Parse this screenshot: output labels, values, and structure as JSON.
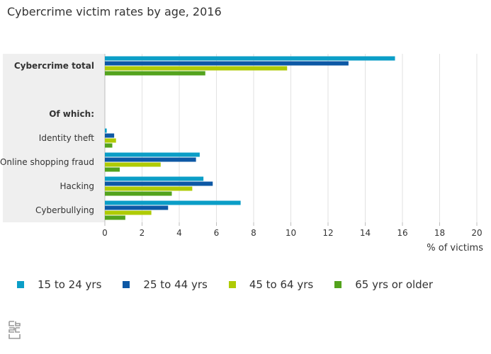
{
  "chart_data": {
    "type": "bar",
    "orientation": "horizontal",
    "title": "Cybercrime victim rates by age, 2016",
    "xlabel": "% of victims",
    "xlim": [
      0,
      20
    ],
    "xticks": [
      0,
      2,
      4,
      6,
      8,
      10,
      12,
      14,
      16,
      18,
      20
    ],
    "grid": true,
    "legend_position": "bottom",
    "categories": [
      "Cybercrime total",
      "",
      "Of which:",
      "Identity theft",
      "Online shopping fraud",
      "Hacking",
      "Cyberbullying"
    ],
    "bold_categories": [
      "Cybercrime total",
      "Of which:"
    ],
    "series": [
      {
        "name": "15 to 24 yrs",
        "color": "#0b9ec7",
        "values": [
          15.6,
          null,
          null,
          0.1,
          5.1,
          5.3,
          7.3
        ]
      },
      {
        "name": "25 to 44 yrs",
        "color": "#0d58a5",
        "values": [
          13.1,
          null,
          null,
          0.5,
          4.9,
          5.8,
          3.4
        ]
      },
      {
        "name": "45 to 64 yrs",
        "color": "#afcb05",
        "values": [
          9.8,
          null,
          null,
          0.6,
          3.0,
          4.7,
          2.5
        ]
      },
      {
        "name": "65 yrs or older",
        "color": "#53a31d",
        "values": [
          5.4,
          null,
          null,
          0.4,
          0.8,
          3.6,
          1.1
        ]
      }
    ]
  },
  "logo_icon": "cbs-logo-icon"
}
